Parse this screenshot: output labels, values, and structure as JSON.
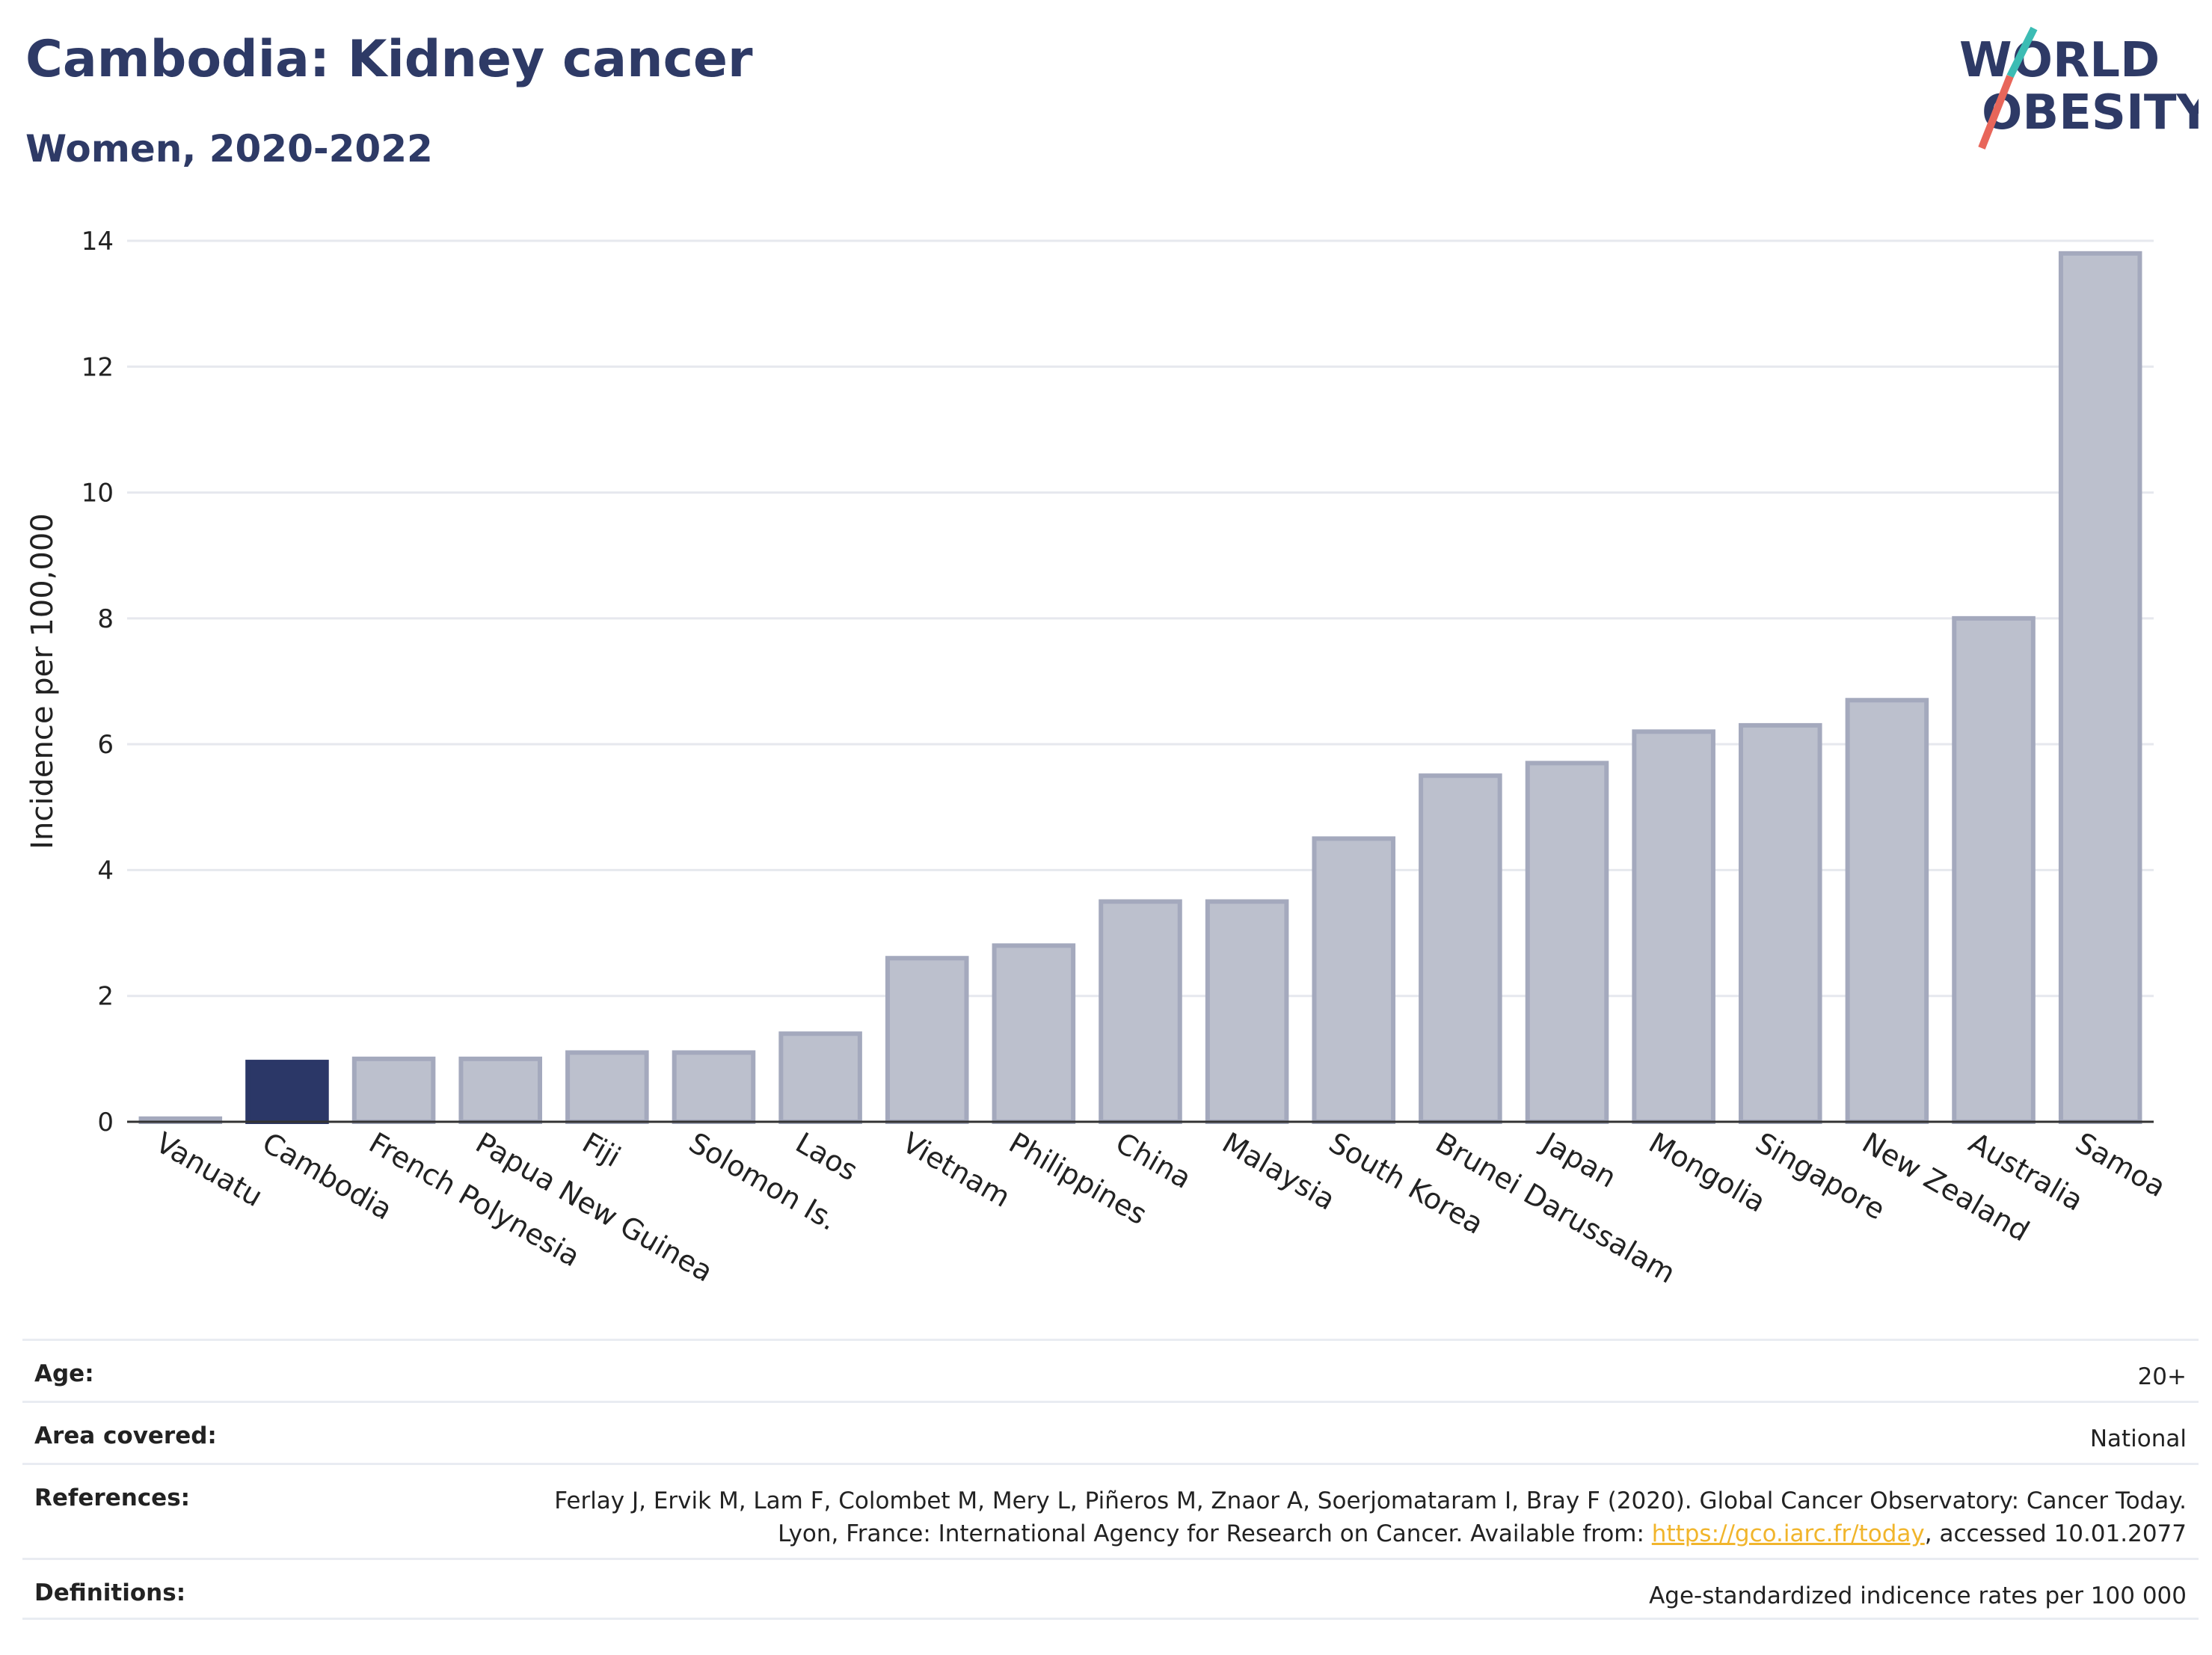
{
  "title": "Cambodia: Kidney cancer",
  "subtitle": "Women, 2020-2022",
  "logo": {
    "line1": "WORLD",
    "line2": "OBESITY"
  },
  "colors": {
    "highlight": "#2b3767",
    "bar_fill": "#bcc0cd",
    "bar_stroke": "#a4a9bd",
    "title": "#2e3a66",
    "link": "#f1b52c",
    "logo_teal": "#3cbcb4",
    "logo_red": "#e8665a"
  },
  "chart_data": {
    "type": "bar",
    "title": "Cambodia: Kidney cancer",
    "subtitle": "Women, 2020-2022",
    "ylabel": "Incidence per 100,000",
    "xlabel": "",
    "ylim": [
      0,
      14
    ],
    "yticks": [
      "0",
      "2",
      "4",
      "6",
      "8",
      "10",
      "12",
      "14"
    ],
    "highlight": "Cambodia",
    "grid": true,
    "categories": [
      "Vanuatu",
      "Cambodia",
      "French Polynesia",
      "Papua New Guinea",
      "Fiji",
      "Solomon Is.",
      "Laos",
      "Vietnam",
      "Philippines",
      "China",
      "Malaysia",
      "South Korea",
      "Brunei Darussalam",
      "Japan",
      "Mongolia",
      "Singapore",
      "New Zealand",
      "Australia",
      "Samoa"
    ],
    "values": [
      0.05,
      0.95,
      1.0,
      1.0,
      1.1,
      1.1,
      1.4,
      2.6,
      2.8,
      3.5,
      3.5,
      4.5,
      5.5,
      5.7,
      6.2,
      6.3,
      6.7,
      8.0,
      13.8
    ]
  },
  "info": [
    {
      "label": "Age:",
      "value": "20+"
    },
    {
      "label": "Area covered:",
      "value": "National"
    },
    {
      "label": "References:",
      "value_before": "Ferlay J, Ervik M, Lam F, Colombet M, Mery L, Piñeros M, Znaor A, Soerjomataram I, Bray F (2020). Global Cancer Observatory: Cancer Today. Lyon, France: International Agency for Research on Cancer. Available from: ",
      "link": "https://gco.iarc.fr/today",
      "value_after": ", accessed 10.01.2077"
    },
    {
      "label": "Definitions:",
      "value": "Age-standardized indicence rates per 100 000"
    }
  ]
}
